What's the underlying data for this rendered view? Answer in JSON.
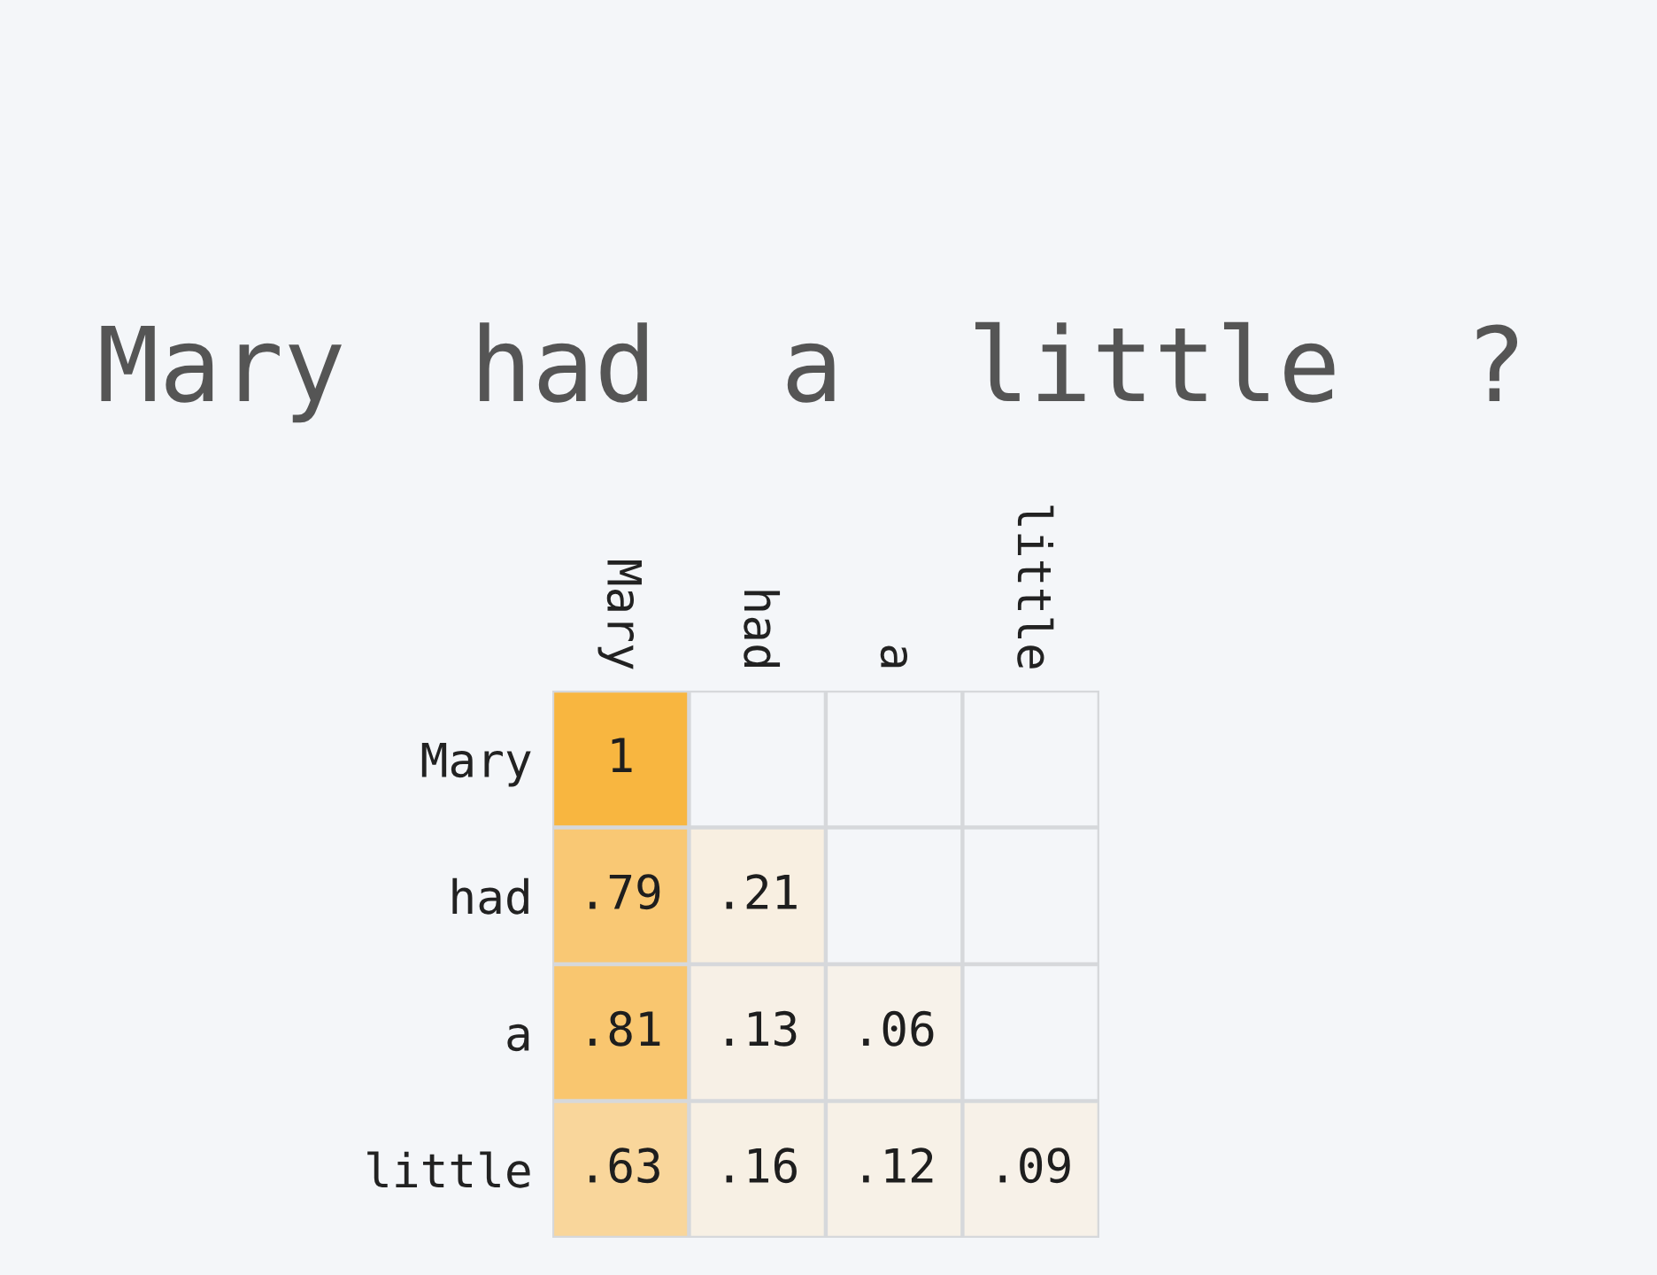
{
  "chart_data": {
    "type": "heatmap",
    "title": "Mary  had  a  little  ?",
    "categories": [
      "Mary",
      "had",
      "a",
      "little"
    ],
    "y_categories": [
      "Mary",
      "had",
      "a",
      "little"
    ],
    "cells": [
      [
        1,
        null,
        null,
        null
      ],
      [
        0.79,
        0.21,
        null,
        null
      ],
      [
        0.81,
        0.13,
        0.06,
        null
      ],
      [
        0.63,
        0.16,
        0.12,
        0.09
      ]
    ],
    "cell_labels": [
      [
        "1",
        null,
        null,
        null
      ],
      [
        ".79",
        ".21",
        null,
        null
      ],
      [
        ".81",
        ".13",
        ".06",
        null
      ],
      [
        ".63",
        ".16",
        ".12",
        ".09"
      ]
    ]
  }
}
